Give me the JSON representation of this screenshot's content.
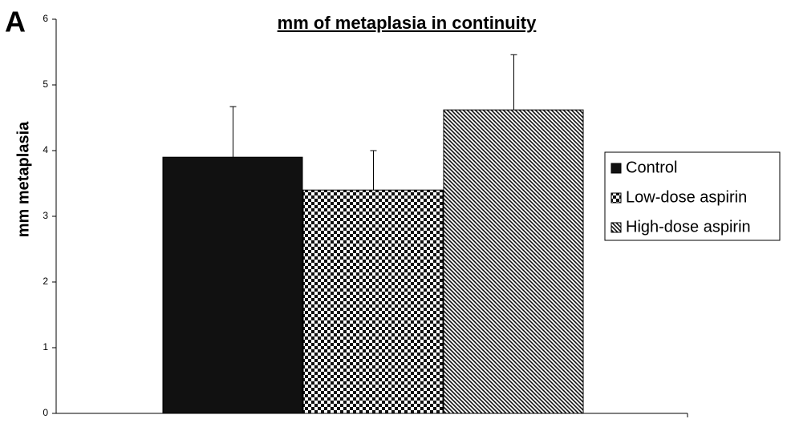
{
  "chart_data": {
    "type": "bar",
    "panel_label": "A",
    "title": "mm of metaplasia in continuity",
    "y_label": "mm metaplasia",
    "categories": [
      null
    ],
    "series": [
      {
        "name": "Control",
        "color": "#111111",
        "pattern": "solid",
        "values": [
          3.9
        ],
        "errors": [
          0.77
        ]
      },
      {
        "name": "Low-dose aspirin",
        "color": "#111111",
        "pattern": "checker",
        "values": [
          3.4
        ],
        "errors": [
          0.6
        ]
      },
      {
        "name": "High-dose aspirin",
        "color": "#111111",
        "pattern": "diagonal",
        "values": [
          4.62
        ],
        "errors": [
          0.84
        ]
      }
    ],
    "ylim": [
      0,
      6
    ],
    "yticks": [
      0,
      1,
      2,
      3,
      4,
      5,
      6
    ],
    "grid": false,
    "legend": "right"
  }
}
